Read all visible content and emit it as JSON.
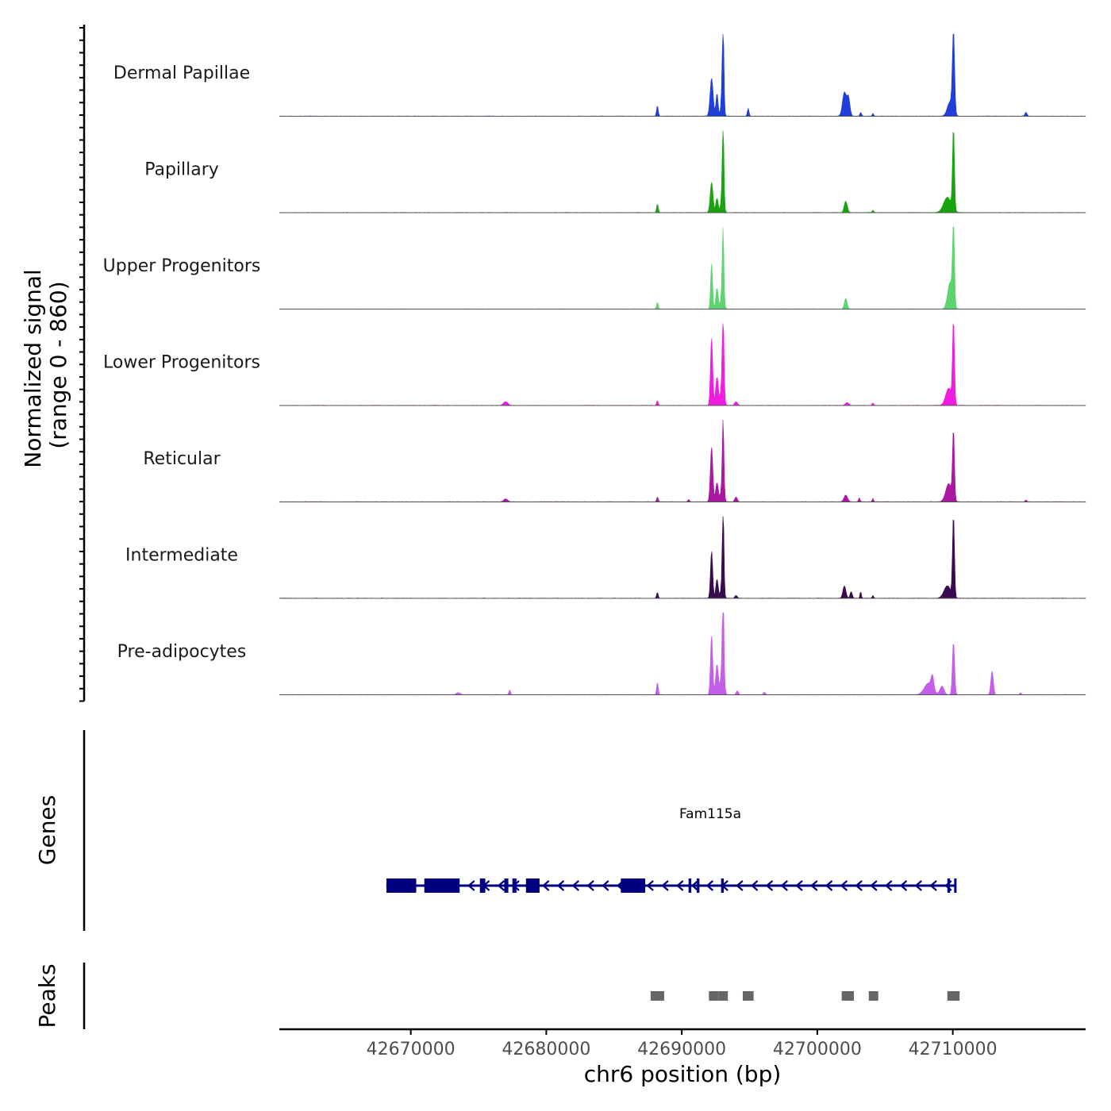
{
  "chart_data": {
    "type": "area",
    "chromosome": "chr6",
    "xlabel": "chr6 position (bp)",
    "xlim": [
      42660300,
      42719800
    ],
    "x_ticks": [
      "42670000",
      "42680000",
      "42690000",
      "42700000",
      "42710000"
    ],
    "signal_axis_title_line1": "Normalized signal",
    "signal_axis_title_line2": "(range 0 - 860)",
    "ylim": [
      0,
      860
    ],
    "genes_axis_title": "Genes",
    "peaks_axis_title": "Peaks",
    "tracks": [
      {
        "name": "Dermal Papillae",
        "color": "#1F3FD8",
        "peaks": [
          [
            42688200,
            110,
            60
          ],
          [
            42692200,
            400,
            110
          ],
          [
            42692600,
            240,
            80
          ],
          [
            42693000,
            300,
            90
          ],
          [
            42693050,
            800,
            55
          ],
          [
            42694900,
            80,
            60
          ],
          [
            42702000,
            250,
            140
          ],
          [
            42702300,
            190,
            110
          ],
          [
            42703200,
            40,
            60
          ],
          [
            42704100,
            30,
            50
          ],
          [
            42709800,
            150,
            200
          ],
          [
            42710050,
            860,
            80
          ],
          [
            42715400,
            40,
            80
          ]
        ]
      },
      {
        "name": "Papillary",
        "color": "#19A30E",
        "peaks": [
          [
            42688200,
            90,
            60
          ],
          [
            42692200,
            320,
            100
          ],
          [
            42692600,
            150,
            90
          ],
          [
            42693000,
            230,
            100
          ],
          [
            42693050,
            800,
            55
          ],
          [
            42702100,
            120,
            110
          ],
          [
            42704100,
            25,
            60
          ],
          [
            42709600,
            160,
            280
          ],
          [
            42710050,
            860,
            70
          ]
        ]
      },
      {
        "name": "Upper Progenitors",
        "color": "#5ED470",
        "peaks": [
          [
            42688200,
            70,
            60
          ],
          [
            42692200,
            490,
            70
          ],
          [
            42692600,
            220,
            90
          ],
          [
            42693000,
            240,
            100
          ],
          [
            42693050,
            650,
            55
          ],
          [
            42702100,
            110,
            100
          ],
          [
            42709800,
            280,
            180
          ],
          [
            42710050,
            860,
            70
          ]
        ]
      },
      {
        "name": "Lower Progenitors",
        "color": "#F01CE0",
        "peaks": [
          [
            42677000,
            40,
            160
          ],
          [
            42688200,
            50,
            60
          ],
          [
            42692200,
            720,
            80
          ],
          [
            42692600,
            300,
            100
          ],
          [
            42693000,
            310,
            110
          ],
          [
            42693050,
            780,
            55
          ],
          [
            42694000,
            40,
            100
          ],
          [
            42702200,
            30,
            120
          ],
          [
            42704100,
            25,
            60
          ],
          [
            42709700,
            180,
            220
          ],
          [
            42710050,
            860,
            70
          ]
        ]
      },
      {
        "name": "Reticular",
        "color": "#AA17A0",
        "peaks": [
          [
            42677000,
            30,
            140
          ],
          [
            42688200,
            50,
            60
          ],
          [
            42690500,
            25,
            60
          ],
          [
            42692200,
            580,
            90
          ],
          [
            42692600,
            200,
            100
          ],
          [
            42693000,
            200,
            110
          ],
          [
            42693050,
            720,
            55
          ],
          [
            42694000,
            50,
            90
          ],
          [
            42702100,
            70,
            130
          ],
          [
            42703100,
            40,
            60
          ],
          [
            42704100,
            35,
            50
          ],
          [
            42709700,
            190,
            220
          ],
          [
            42710050,
            720,
            70
          ],
          [
            42715400,
            20,
            60
          ]
        ]
      },
      {
        "name": "Intermediate",
        "color": "#3A0A4F",
        "peaks": [
          [
            42688200,
            60,
            60
          ],
          [
            42692200,
            500,
            80
          ],
          [
            42692600,
            200,
            90
          ],
          [
            42693000,
            200,
            100
          ],
          [
            42693050,
            860,
            55
          ],
          [
            42694000,
            30,
            90
          ],
          [
            42702000,
            130,
            110
          ],
          [
            42702500,
            70,
            80
          ],
          [
            42703200,
            70,
            50
          ],
          [
            42704100,
            30,
            50
          ],
          [
            42709600,
            130,
            250
          ],
          [
            42710050,
            860,
            70
          ]
        ]
      },
      {
        "name": "Pre-adipocytes",
        "color": "#C35DEA",
        "peaks": [
          [
            42673500,
            20,
            150
          ],
          [
            42677300,
            50,
            60
          ],
          [
            42688200,
            130,
            60
          ],
          [
            42692200,
            630,
            80
          ],
          [
            42692600,
            320,
            100
          ],
          [
            42693000,
            350,
            110
          ],
          [
            42693050,
            860,
            55
          ],
          [
            42694100,
            40,
            80
          ],
          [
            42696100,
            25,
            80
          ],
          [
            42708200,
            120,
            300
          ],
          [
            42708500,
            140,
            100
          ],
          [
            42709200,
            90,
            150
          ],
          [
            42710050,
            560,
            80
          ],
          [
            42712900,
            250,
            90
          ],
          [
            42715000,
            20,
            60
          ]
        ]
      }
    ],
    "gene": {
      "name": "Fam115a",
      "strand": "-",
      "start": 42668200,
      "end": 42710200,
      "exons": [
        [
          42668200,
          42670400
        ],
        [
          42671000,
          42673600
        ],
        [
          42675100,
          42675500
        ],
        [
          42676900,
          42677200
        ],
        [
          42677500,
          42677800
        ],
        [
          42678500,
          42679500
        ],
        [
          42685500,
          42687300
        ],
        [
          42690500,
          42690700
        ],
        [
          42691100,
          42691300
        ],
        [
          42692900,
          42693100
        ],
        [
          42709600,
          42709800
        ],
        [
          42710100,
          42710200
        ]
      ]
    },
    "peak_regions": [
      [
        42687700,
        42688700
      ],
      [
        42692000,
        42692700
      ],
      [
        42692700,
        42693400
      ],
      [
        42694500,
        42695300
      ],
      [
        42701800,
        42702700
      ],
      [
        42703800,
        42704500
      ],
      [
        42709600,
        42710500
      ]
    ]
  }
}
